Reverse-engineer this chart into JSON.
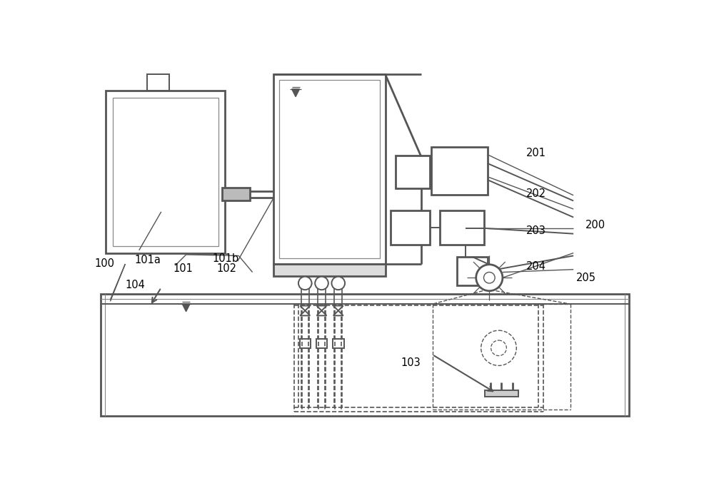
{
  "bg": "#ffffff",
  "lc": "#555555",
  "lw": 1.4,
  "lw2": 2.0,
  "fs": 10.5,
  "figw": 10.0,
  "figh": 6.77
}
